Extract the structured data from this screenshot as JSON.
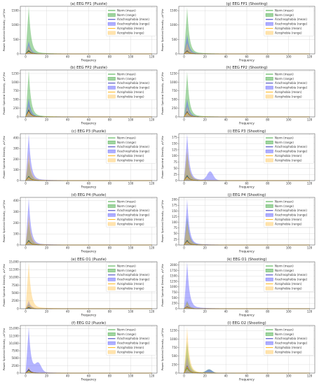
{
  "chart_data": {
    "type": "area",
    "grid": true,
    "legend_placement": "top-right",
    "xlim": [
      -5,
      125
    ],
    "x_ticks": [
      0,
      20,
      40,
      60,
      80,
      100,
      120
    ],
    "x_grid": [
      0,
      20,
      40,
      60,
      80,
      100,
      120
    ],
    "xlabel": "Frequency",
    "ylabel": "Power Spectral Density, µV²/Hz",
    "series_style": [
      {
        "name": "Norm (mean)",
        "kind": "line",
        "color": "#2ca02c"
      },
      {
        "name": "Norm (range)",
        "kind": "fill",
        "color": "#2ca02c"
      },
      {
        "name": "Arachnophobia (mean)",
        "kind": "line",
        "color": "#1f1fb4"
      },
      {
        "name": "Arachnophobia (range)",
        "kind": "fill",
        "color": "#4c4cff"
      },
      {
        "name": "Acrophobia (mean)",
        "kind": "line",
        "color": "#ffb000"
      },
      {
        "name": "Acrophobia (range)",
        "kind": "fill",
        "color": "#ffc24a"
      }
    ],
    "panels": [
      {
        "title": "(a) EEG FP1 (Puzzle)",
        "ylim": [
          0,
          1650
        ],
        "yticks": [
          0,
          500,
          1000,
          1500
        ],
        "peaks": {
          "norm": 1600,
          "arach": 420,
          "acro": 280
        },
        "mean_peaks": [
          120,
          90,
          70
        ]
      },
      {
        "title": "(g) EEG FP1 (Shooting)",
        "ylim": [
          0,
          1650
        ],
        "yticks": [
          0,
          500,
          1000,
          1500
        ],
        "peaks": {
          "norm": 1550,
          "arach": 650,
          "acro": 380
        },
        "mean_peaks": [
          110,
          100,
          80
        ]
      },
      {
        "title": "(b) EEG FP2 (Puzzle)",
        "ylim": [
          0,
          1350
        ],
        "yticks": [
          0,
          250,
          500,
          750,
          1000,
          1250
        ],
        "peaks": {
          "norm": 1300,
          "arach": 520,
          "acro": 300
        },
        "mean_peaks": [
          200,
          180,
          150
        ]
      },
      {
        "title": "(h) EEG FP2 (Shooting)",
        "ylim": [
          0,
          1350
        ],
        "yticks": [
          0,
          250,
          500,
          750,
          1000,
          1250
        ],
        "peaks": {
          "norm": 1250,
          "arach": 500,
          "acro": 300
        },
        "mean_peaks": [
          150,
          140,
          120
        ]
      },
      {
        "title": "(c) EEG P3 (Puzzle)",
        "ylim": [
          0,
          440
        ],
        "yticks": [
          0,
          100,
          200,
          300,
          400
        ],
        "peaks": {
          "norm": 180,
          "arach": 430,
          "acro": 250
        },
        "mean_peaks": [
          40,
          35,
          30
        ]
      },
      {
        "title": "(i) EEG P3 (Shooting)",
        "ylim": [
          0,
          190
        ],
        "yticks": [
          0,
          25,
          50,
          75,
          100,
          125,
          150,
          175
        ],
        "peaks": {
          "norm": 110,
          "arach": 185,
          "acro": 120
        },
        "mean_peaks": [
          20,
          18,
          15
        ],
        "bump": {
          "x": 25,
          "h": 35
        }
      },
      {
        "title": "(d) EEG P4 (Puzzle)",
        "ylim": [
          0,
          430
        ],
        "yticks": [
          0,
          100,
          200,
          300,
          400
        ],
        "peaks": {
          "norm": 200,
          "arach": 410,
          "acro": 260
        },
        "mean_peaks": [
          40,
          35,
          30
        ]
      },
      {
        "title": "(j) EEG P4 (Shooting)",
        "ylim": [
          0,
          210
        ],
        "yticks": [
          0,
          25,
          50,
          75,
          100,
          125,
          150,
          175,
          200
        ],
        "peaks": {
          "norm": 120,
          "arach": 195,
          "acro": 100
        },
        "mean_peaks": [
          20,
          18,
          15
        ]
      },
      {
        "title": "(e) EEG O1 (Puzzle)",
        "ylim": [
          0,
          15000
        ],
        "yticks": [
          0,
          2500,
          5000,
          7500,
          10000,
          12500,
          15000
        ],
        "peaks": {
          "norm": 1500,
          "arach": 2500,
          "acro": 14500
        },
        "mean_peaks": [
          300,
          400,
          600
        ]
      },
      {
        "title": "(k) EEG O1 (Shooting)",
        "ylim": [
          0,
          2150
        ],
        "yticks": [
          0,
          250,
          500,
          750,
          1000,
          1250,
          1500,
          1750,
          2000
        ],
        "peaks": {
          "norm": 350,
          "arach": 2100,
          "acro": 300
        },
        "mean_peaks": [
          80,
          90,
          70
        ]
      },
      {
        "title": "(f) EEG O2 (Puzzle)",
        "ylim": [
          0,
          16000
        ],
        "yticks": [
          0,
          2500,
          5000,
          7500,
          10000,
          12500,
          15000
        ],
        "peaks": {
          "norm": 1500,
          "arach": 15000,
          "acro": 2000
        },
        "mean_peaks": [
          800,
          1200,
          700
        ],
        "bump": {
          "x": 12,
          "h": 3000
        }
      },
      {
        "title": "(l) EEG O2 (Shooting)",
        "ylim": [
          0,
          1400
        ],
        "yticks": [
          0,
          250,
          500,
          750,
          1000,
          1250
        ],
        "peaks": {
          "norm": 900,
          "arach": 500,
          "acro": 1300
        },
        "mean_peaks": [
          150,
          200,
          180
        ],
        "bump": {
          "x": 24,
          "h": 100
        }
      }
    ]
  }
}
